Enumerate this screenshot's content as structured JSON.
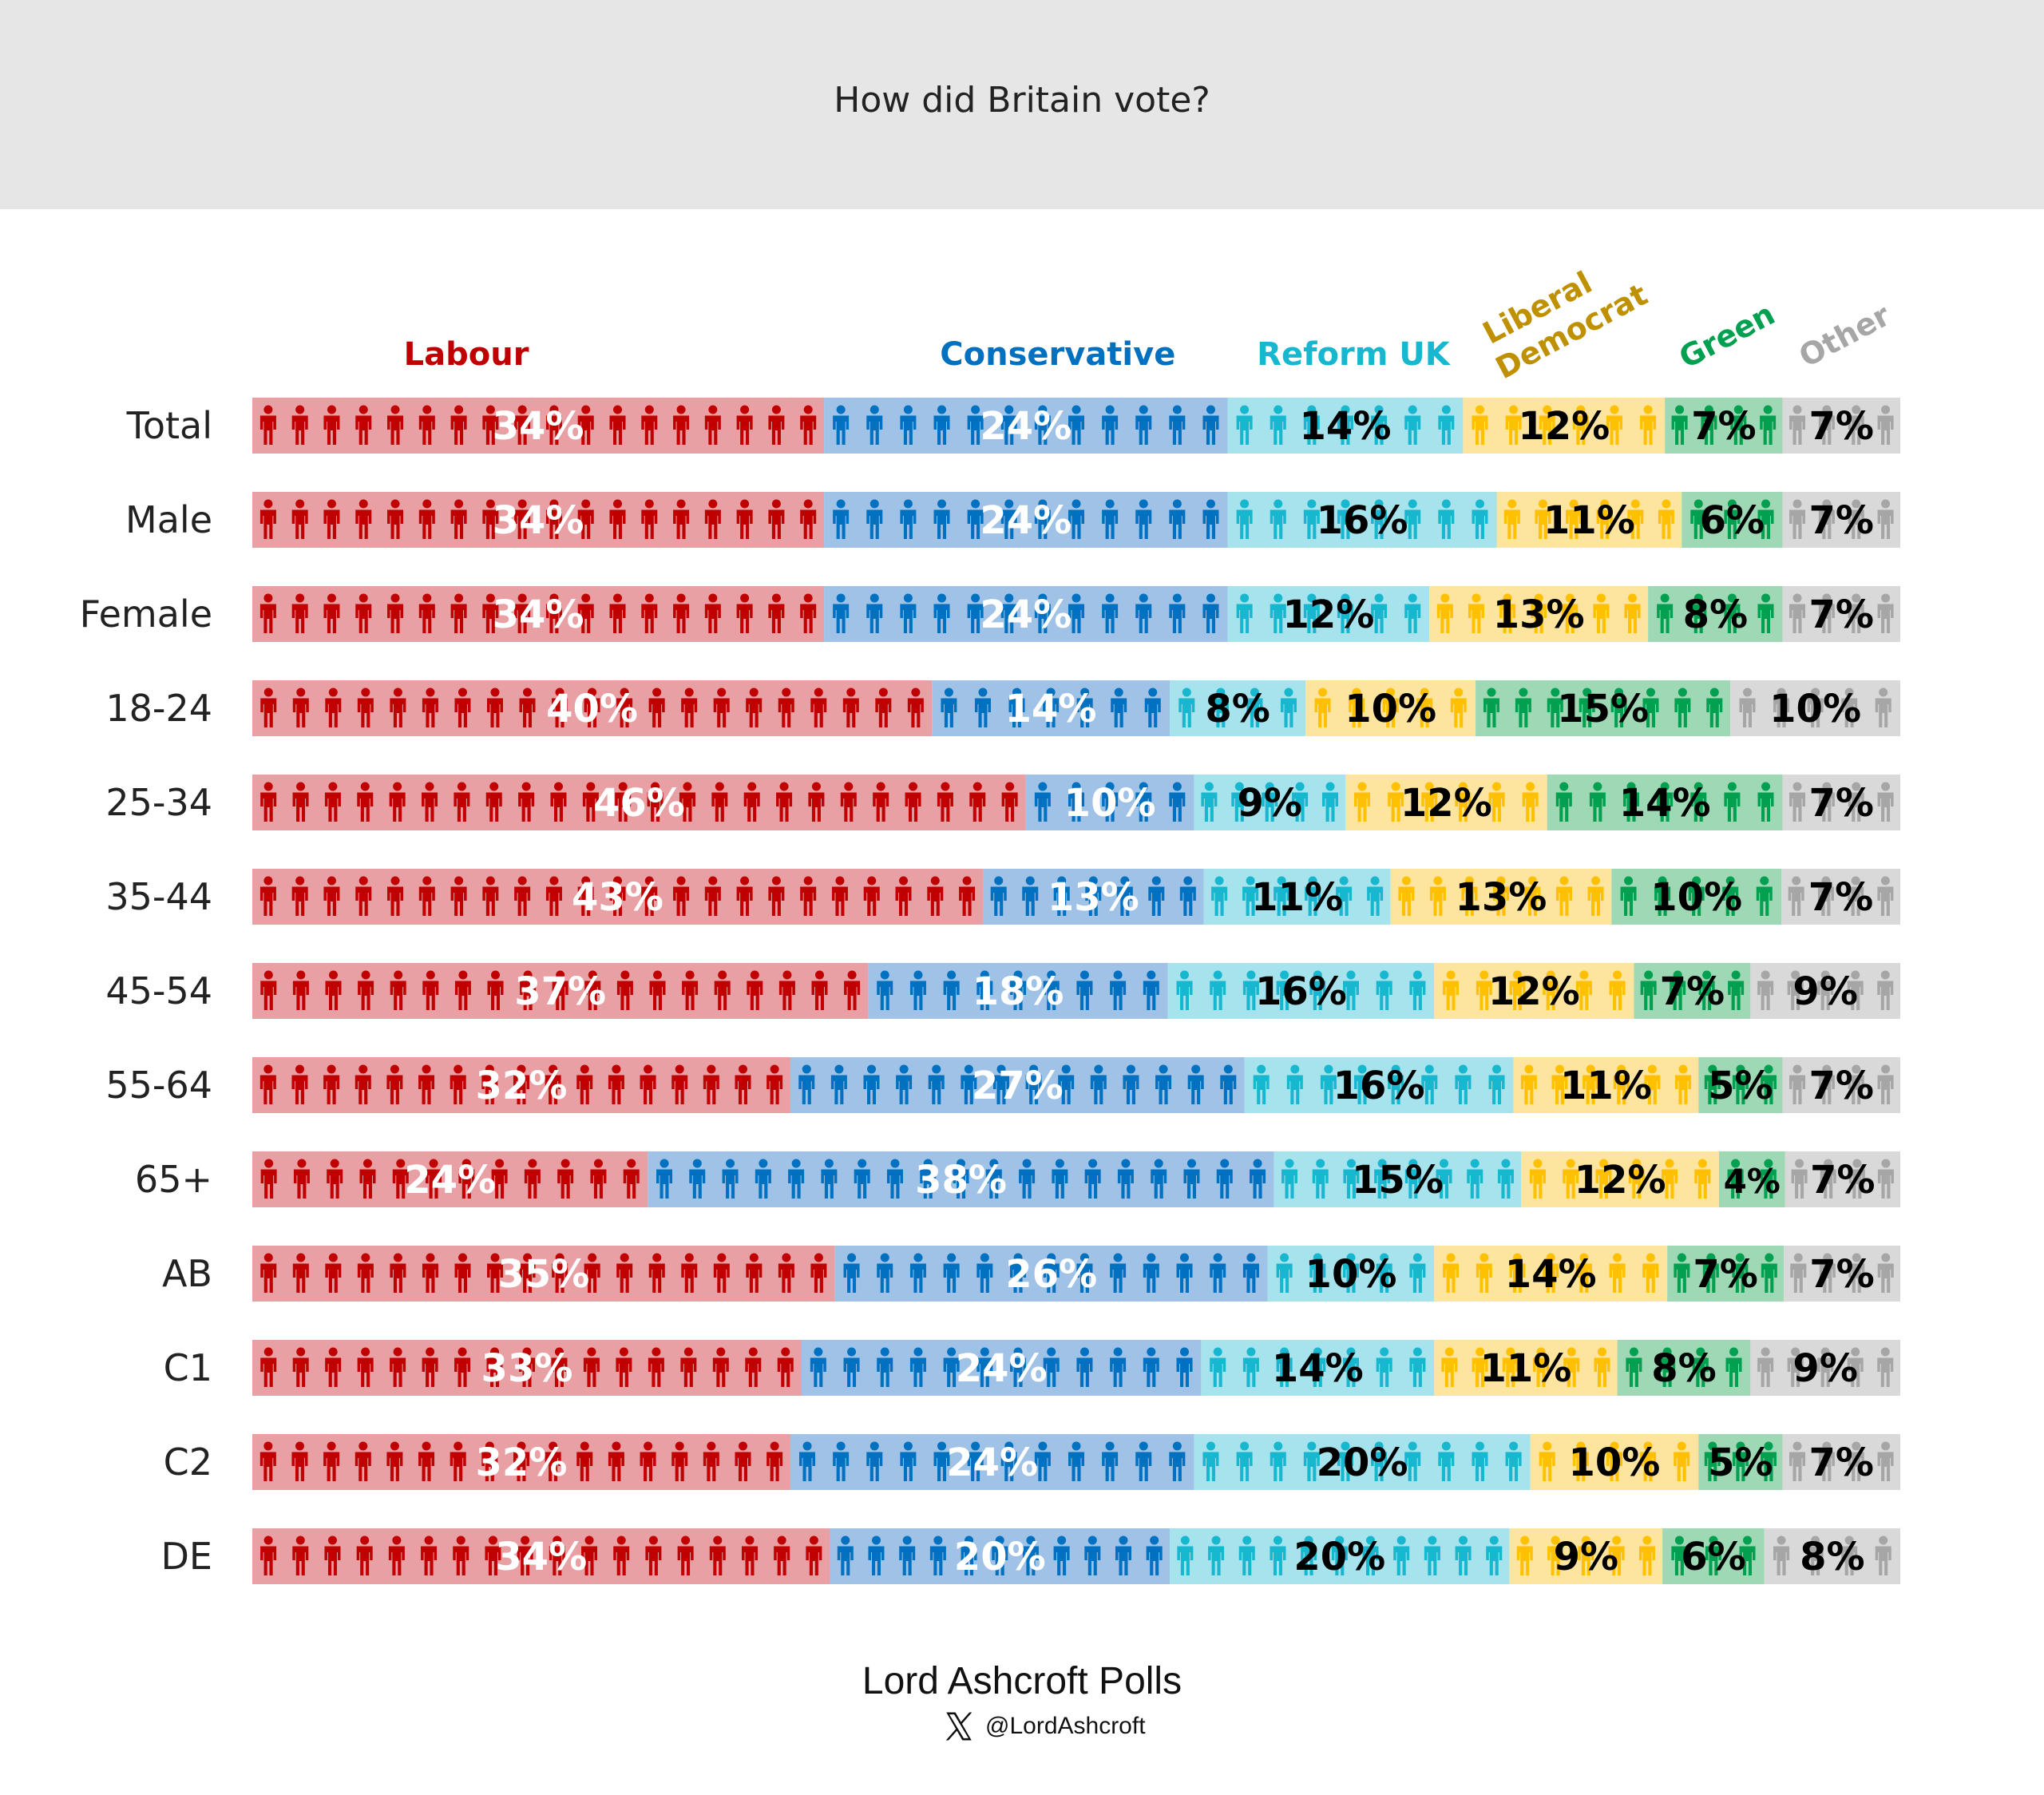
{
  "header": {
    "title": "How did Britain vote?"
  },
  "footer": {
    "source": "Lord Ashcroft Polls",
    "handle": "@LordAshcroft",
    "logo_icon": "x-logo-icon"
  },
  "chart_data": {
    "type": "bar",
    "orientation": "horizontal-stacked-100",
    "title": "How did Britain vote?",
    "series": [
      {
        "name": "Labour",
        "label_lines": [
          "Labour"
        ],
        "color": "#c00000",
        "bg": "#e8a0a4",
        "text_color": "#ffffff"
      },
      {
        "name": "Conservative",
        "label_lines": [
          "Conservative"
        ],
        "color": "#0070c0",
        "bg": "#9fc2e6",
        "text_color": "#ffffff"
      },
      {
        "name": "Reform UK",
        "label_lines": [
          "Reform UK"
        ],
        "color": "#17b7cf",
        "bg": "#a6e3ec",
        "text_color": "#000000"
      },
      {
        "name": "Liberal Democrat",
        "label_lines": [
          "Liberal",
          "Democrat"
        ],
        "color": "#ffc000",
        "bg": "#fde59f",
        "text_color": "#000000"
      },
      {
        "name": "Green",
        "label_lines": [
          "Green"
        ],
        "color": "#00a050",
        "bg": "#9fd8b4",
        "text_color": "#000000"
      },
      {
        "name": "Other",
        "label_lines": [
          "Other"
        ],
        "color": "#a6a6a6",
        "bg": "#d9d9d9",
        "text_color": "#000000"
      }
    ],
    "series_label_colors": [
      "#c00000",
      "#0070c0",
      "#17b7cf",
      "#bf9000",
      "#00a050",
      "#a6a6a6"
    ],
    "categories": [
      "Total",
      "Male",
      "Female",
      "18-24",
      "25-34",
      "35-44",
      "45-54",
      "55-64",
      "65+",
      "AB",
      "C1",
      "C2",
      "DE"
    ],
    "values": [
      [
        34,
        24,
        14,
        12,
        7,
        7
      ],
      [
        34,
        24,
        16,
        11,
        6,
        7
      ],
      [
        34,
        24,
        12,
        13,
        8,
        7
      ],
      [
        40,
        14,
        8,
        10,
        15,
        10
      ],
      [
        46,
        10,
        9,
        12,
        14,
        7
      ],
      [
        43,
        13,
        11,
        13,
        10,
        7
      ],
      [
        37,
        18,
        16,
        12,
        7,
        9
      ],
      [
        32,
        27,
        16,
        11,
        5,
        7
      ],
      [
        24,
        38,
        15,
        12,
        4,
        7
      ],
      [
        35,
        26,
        10,
        14,
        7,
        7
      ],
      [
        33,
        24,
        14,
        11,
        8,
        9
      ],
      [
        32,
        24,
        20,
        10,
        5,
        7
      ],
      [
        34,
        20,
        20,
        9,
        6,
        8
      ]
    ],
    "unit": "%",
    "legend": "top"
  }
}
